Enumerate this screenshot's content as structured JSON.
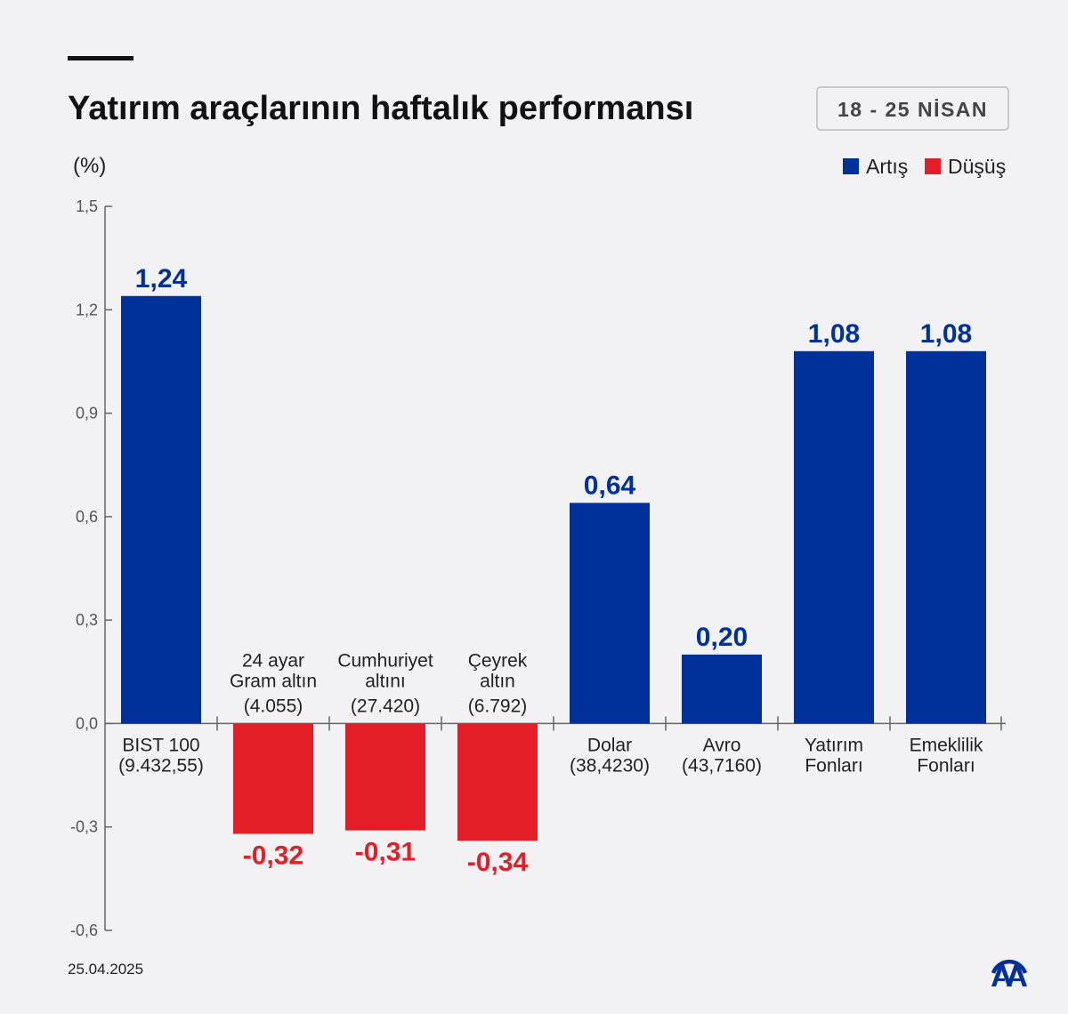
{
  "header": {
    "title": "Yatırım araçlarının haftalık performansı",
    "date_range": "18 - 25 NİSAN",
    "footer_date": "25.04.2025",
    "logo": "AA"
  },
  "colors": {
    "increase": "#00309a",
    "decrease": "#e41e26"
  },
  "chart_data": {
    "type": "bar",
    "title": "Yatırım araçlarının haftalık performansı",
    "ylabel": "(%)",
    "ylim": [
      -0.6,
      1.5
    ],
    "yticks": [
      "1,5",
      "1,2",
      "0,9",
      "0,6",
      "0,3",
      "0,0",
      "-0,3",
      "-0,6"
    ],
    "ytick_values": [
      1.5,
      1.2,
      0.9,
      0.6,
      0.3,
      0,
      -0.3,
      -0.6
    ],
    "grid": false,
    "legend": {
      "placement": "top-right",
      "entries": [
        "Artış",
        "Düşüş"
      ]
    },
    "categories": [
      {
        "lines": [
          "BIST 100",
          "(9.432,55)"
        ],
        "value": 1.24,
        "label": "1,24"
      },
      {
        "lines": [
          "24 ayar",
          "Gram altın",
          "(4.055)"
        ],
        "value": -0.32,
        "label": "-0,32"
      },
      {
        "lines": [
          "Cumhuriyet",
          "altını",
          "(27.420)"
        ],
        "value": -0.31,
        "label": "-0,31"
      },
      {
        "lines": [
          "Çeyrek",
          "altın",
          "(6.792)"
        ],
        "value": -0.34,
        "label": "-0,34"
      },
      {
        "lines": [
          "Dolar",
          "(38,4230)"
        ],
        "value": 0.64,
        "label": "0,64"
      },
      {
        "lines": [
          "Avro",
          "(43,7160)"
        ],
        "value": 0.2,
        "label": "0,20"
      },
      {
        "lines": [
          "Yatırım",
          "Fonları"
        ],
        "value": 1.08,
        "label": "1,08"
      },
      {
        "lines": [
          "Emeklilik",
          "Fonları"
        ],
        "value": 1.08,
        "label": "1,08"
      }
    ]
  }
}
